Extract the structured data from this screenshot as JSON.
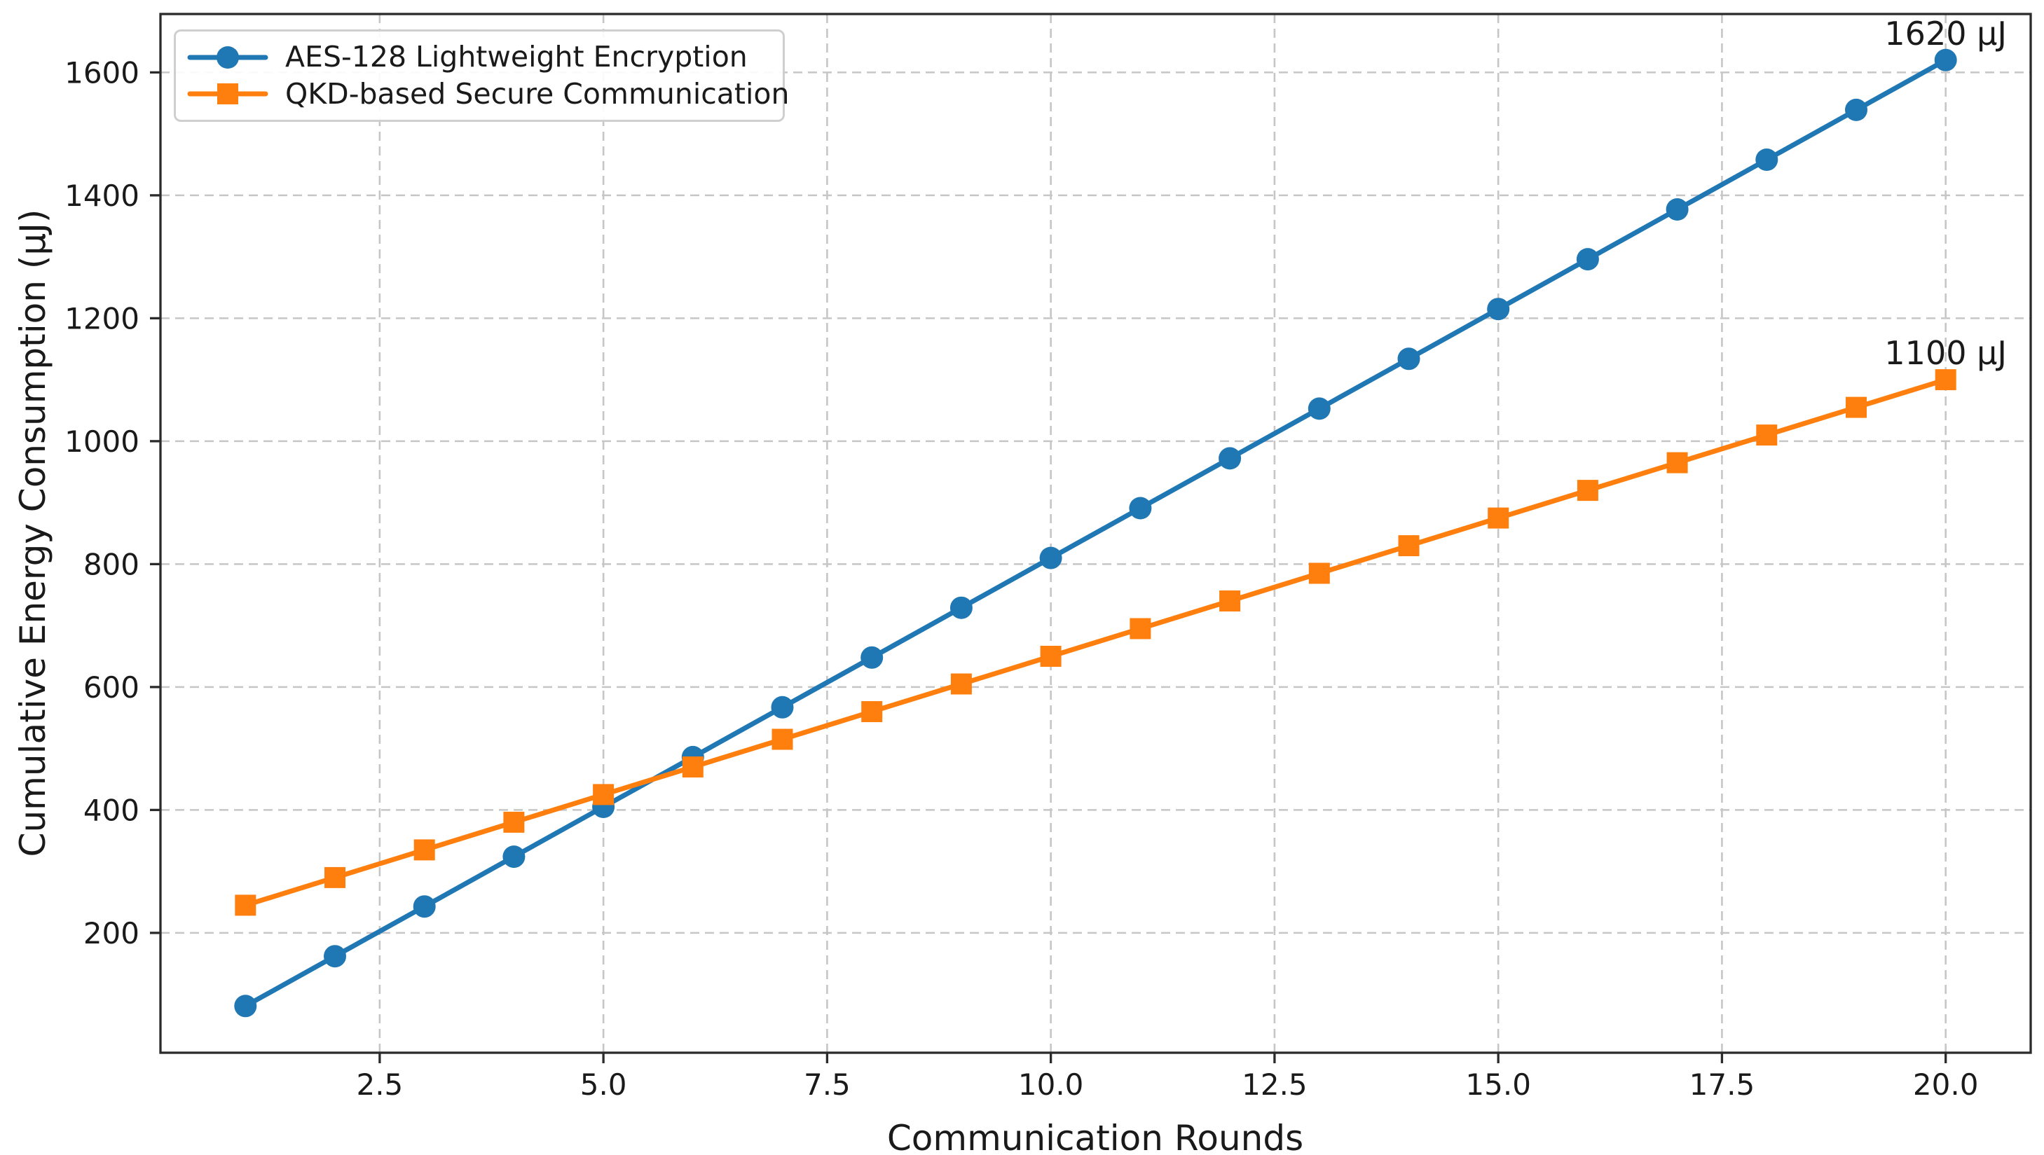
{
  "figure": {
    "background": "#ffffff"
  },
  "chart_data": {
    "type": "line",
    "title": "",
    "xlabel": "Communication Rounds",
    "ylabel": "Cumulative Energy Consumption (µJ)",
    "x": [
      1,
      2,
      3,
      4,
      5,
      6,
      7,
      8,
      9,
      10,
      11,
      12,
      13,
      14,
      15,
      16,
      17,
      18,
      19,
      20
    ],
    "series": [
      {
        "name": "AES-128 Lightweight Encryption",
        "color": "#1f77b4",
        "marker": "circle",
        "values": [
          81,
          162,
          243,
          324,
          405,
          486,
          567,
          648,
          729,
          810,
          891,
          972,
          1053,
          1134,
          1215,
          1296,
          1377,
          1458,
          1539,
          1620
        ]
      },
      {
        "name": "QKD-based Secure Communication",
        "color": "#ff7f0e",
        "marker": "square",
        "values": [
          245,
          290,
          335,
          380,
          425,
          470,
          515,
          560,
          605,
          650,
          695,
          740,
          785,
          830,
          875,
          920,
          965,
          1010,
          1055,
          1100
        ]
      }
    ],
    "annotations": [
      {
        "text": "1620 µJ",
        "x": 20,
        "y": 1620
      },
      {
        "text": "1100 µJ",
        "x": 20,
        "y": 1100
      }
    ],
    "xtick_labels": [
      "2.5",
      "5.0",
      "7.5",
      "10.0",
      "12.5",
      "15.0",
      "17.5",
      "20.0"
    ],
    "xtick_values": [
      2.5,
      5,
      7.5,
      10,
      12.5,
      15,
      17.5,
      20
    ],
    "ytick_labels": [
      "200",
      "400",
      "600",
      "800",
      "1000",
      "1200",
      "1400",
      "1600"
    ],
    "ytick_values": [
      200,
      400,
      600,
      800,
      1000,
      1200,
      1400,
      1600
    ],
    "xlim": [
      0.05,
      20.95
    ],
    "ylim": [
      5,
      1695
    ],
    "grid": true,
    "legend_position": "upper-left",
    "colors": {
      "grid": "#c6c6c6",
      "spine": "#2b2b2b",
      "text": "#1a1a1a",
      "tick": "#2b2b2b"
    }
  }
}
